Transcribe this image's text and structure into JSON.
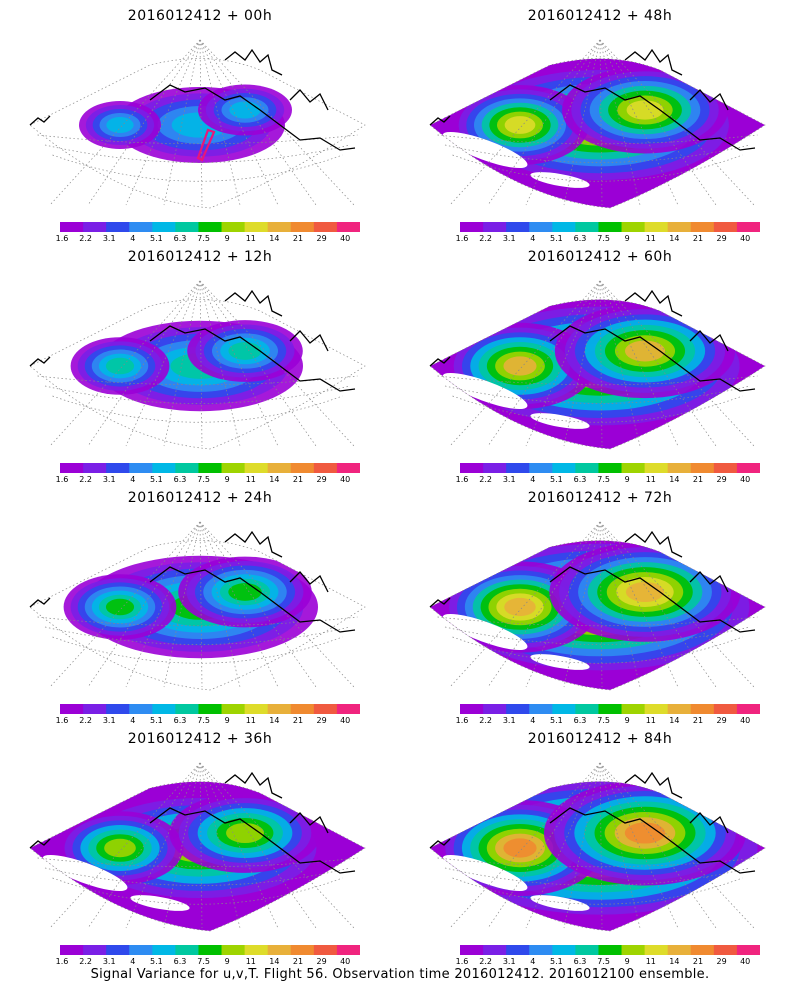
{
  "panels": [
    {
      "title": "2016012412 + 00h",
      "level": 0.3
    },
    {
      "title": "2016012412 + 48h",
      "level": 0.7
    },
    {
      "title": "2016012412 + 12h",
      "level": 0.42
    },
    {
      "title": "2016012412 + 60h",
      "level": 0.78
    },
    {
      "title": "2016012412 + 24h",
      "level": 0.52
    },
    {
      "title": "2016012412 + 72h",
      "level": 0.84
    },
    {
      "title": "2016012412 + 36h",
      "level": 0.62
    },
    {
      "title": "2016012412 + 84h",
      "level": 0.9
    }
  ],
  "colorbar": {
    "labels": [
      "1.6",
      "2.2",
      "3.1",
      "4",
      "5.1",
      "6.3",
      "7.5",
      "9",
      "11",
      "14",
      "21",
      "29",
      "40"
    ],
    "colors": [
      "#9b00d6",
      "#7a1fe6",
      "#2f49ec",
      "#2e8cf2",
      "#00b8e6",
      "#00c8a0",
      "#00c000",
      "#9ed400",
      "#dedc2a",
      "#e8b03a",
      "#f08a30",
      "#f05a40",
      "#f0247e"
    ]
  },
  "footer": "Signal Variance for u,v,T. Flight 56. Observation time 2016012412. 2016012100 ensemble."
}
